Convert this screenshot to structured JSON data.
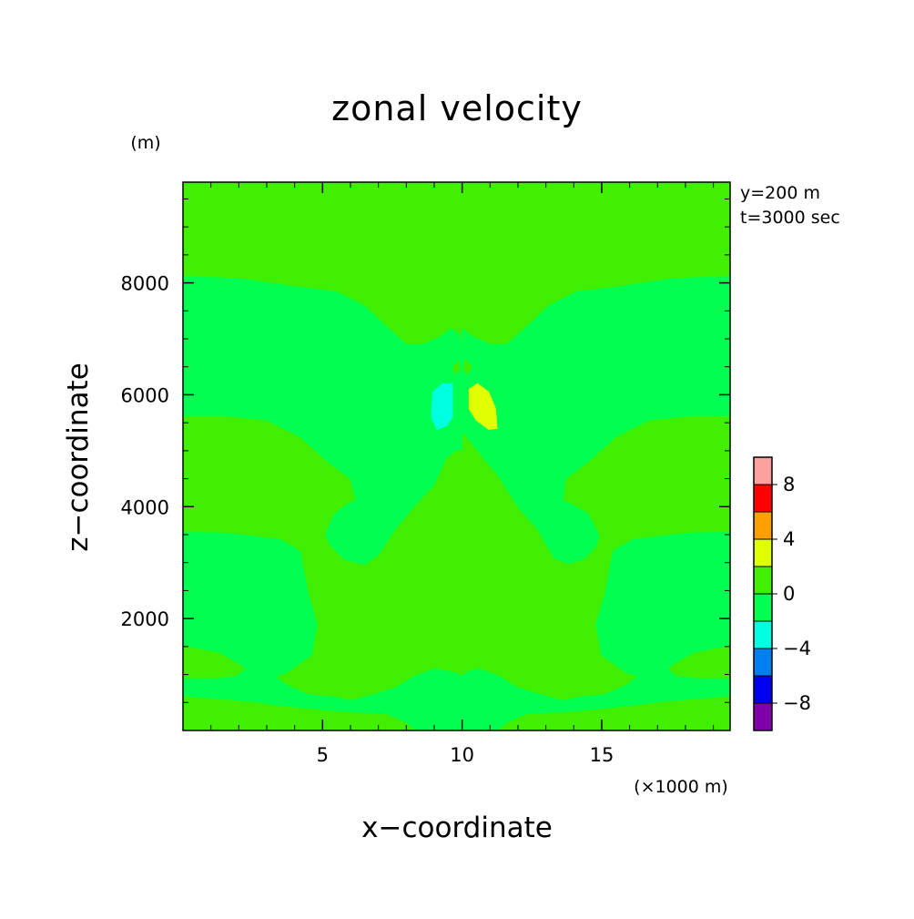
{
  "chart_data": {
    "type": "heatmap",
    "title": "zonal velocity",
    "xlabel": "x−coordinate",
    "ylabel": "z−coordinate",
    "x_unit": "(×1000 m)",
    "y_unit": "(m)",
    "info": [
      "y=200 m",
      "t=3000 sec"
    ],
    "xlim": [
      0,
      19.6
    ],
    "ylim": [
      0,
      9800
    ],
    "x_ticks": [
      {
        "value": 5,
        "label": "5"
      },
      {
        "value": 10,
        "label": "10"
      },
      {
        "value": 15,
        "label": "15"
      }
    ],
    "y_ticks": [
      {
        "value": 2000,
        "label": "2000"
      },
      {
        "value": 4000,
        "label": "4000"
      },
      {
        "value": 6000,
        "label": "6000"
      },
      {
        "value": 8000,
        "label": "8000"
      }
    ],
    "x_minor_step": 1,
    "y_minor_step": 500,
    "colorbar": {
      "levels": [
        -10,
        -8,
        -6,
        -4,
        -2,
        0,
        2,
        4,
        6,
        8,
        10
      ],
      "colors": [
        "#7f00a8",
        "#0000f0",
        "#0080f0",
        "#00ffe0",
        "#00ff50",
        "#40f000",
        "#e0ff00",
        "#ffa000",
        "#ff0000",
        "#ffa0a0"
      ],
      "labels": [
        {
          "value": -8,
          "label": "−8"
        },
        {
          "value": -4,
          "label": "−4"
        },
        {
          "value": 0,
          "label": "0"
        },
        {
          "value": 4,
          "label": "4"
        },
        {
          "value": 8,
          "label": "8"
        }
      ]
    },
    "background_color": "#40f000",
    "regions": [
      {
        "name": "negative-band-upper-left",
        "color": "#00ff50",
        "points": [
          [
            0,
            5.63
          ],
          [
            0,
            8.11
          ],
          [
            2,
            8.08
          ],
          [
            4,
            7.93
          ],
          [
            5.5,
            7.84
          ],
          [
            6.5,
            7.59
          ],
          [
            7.3,
            7.21
          ],
          [
            8,
            6.9
          ],
          [
            8.6,
            6.9
          ],
          [
            9.2,
            7.03
          ],
          [
            9.6,
            7.18
          ],
          [
            9.9,
            7.08
          ],
          [
            10,
            6.85
          ],
          [
            10,
            5.02
          ],
          [
            9.8,
            5.02
          ],
          [
            9.4,
            4.85
          ],
          [
            9,
            4.4
          ],
          [
            8.3,
            4.02
          ],
          [
            7.6,
            3.6
          ],
          [
            7,
            3.14
          ],
          [
            6.5,
            2.97
          ],
          [
            5.8,
            3.05
          ],
          [
            5.3,
            3.3
          ],
          [
            5.1,
            3.49
          ],
          [
            5.4,
            3.85
          ],
          [
            5.8,
            4.02
          ],
          [
            6.2,
            4.12
          ],
          [
            6,
            4.5
          ],
          [
            5.2,
            4.8
          ],
          [
            4.2,
            5.25
          ],
          [
            3,
            5.55
          ],
          [
            1.5,
            5.63
          ]
        ]
      },
      {
        "name": "negative-band-upper-right",
        "color": "#00ff50",
        "points": [
          [
            19.6,
            5.63
          ],
          [
            19.6,
            8.11
          ],
          [
            17.6,
            8.08
          ],
          [
            15.6,
            7.93
          ],
          [
            14.1,
            7.84
          ],
          [
            13.1,
            7.59
          ],
          [
            12.3,
            7.21
          ],
          [
            11.6,
            6.9
          ],
          [
            11,
            6.9
          ],
          [
            10.4,
            7.03
          ],
          [
            10,
            7.18
          ],
          [
            10,
            5.35
          ],
          [
            10.4,
            5.1
          ],
          [
            10.8,
            4.85
          ],
          [
            11.3,
            4.55
          ],
          [
            12,
            4.0
          ],
          [
            12.7,
            3.6
          ],
          [
            13.3,
            3.08
          ],
          [
            13.8,
            2.98
          ],
          [
            14.4,
            3.08
          ],
          [
            14.8,
            3.3
          ],
          [
            14.9,
            3.49
          ],
          [
            14.5,
            3.88
          ],
          [
            14,
            4.02
          ],
          [
            13.6,
            4.12
          ],
          [
            13.7,
            4.5
          ],
          [
            14.5,
            4.8
          ],
          [
            15.5,
            5.25
          ],
          [
            16.7,
            5.55
          ],
          [
            18.2,
            5.63
          ]
        ]
      },
      {
        "name": "negative-band-lower-left",
        "color": "#00ff50",
        "points": [
          [
            0,
            0.62
          ],
          [
            0,
            3.54
          ],
          [
            1.5,
            3.53
          ],
          [
            3.5,
            3.41
          ],
          [
            4.2,
            3.2
          ],
          [
            4.3,
            2.9
          ],
          [
            4.5,
            2.4
          ],
          [
            4.8,
            1.9
          ],
          [
            4.6,
            1.35
          ],
          [
            3.7,
            1.03
          ],
          [
            3.3,
            0.97
          ],
          [
            3.7,
            0.81
          ],
          [
            4.5,
            0.64
          ],
          [
            5.5,
            0.59
          ],
          [
            6,
            0.53
          ],
          [
            6.8,
            0.64
          ],
          [
            7.6,
            0.76
          ],
          [
            8.3,
            0.97
          ],
          [
            9,
            1.1
          ],
          [
            9.6,
            1.05
          ],
          [
            10,
            0.98
          ],
          [
            10,
            0.02
          ],
          [
            8.3,
            0.02
          ],
          [
            8.0,
            0.15
          ],
          [
            7.3,
            0.3
          ],
          [
            5.5,
            0.35
          ],
          [
            3.5,
            0.45
          ],
          [
            2.5,
            0.52
          ],
          [
            1.5,
            0.56
          ]
        ]
      },
      {
        "name": "negative-band-lower-right",
        "color": "#00ff50",
        "points": [
          [
            19.6,
            0.62
          ],
          [
            19.6,
            3.54
          ],
          [
            18.1,
            3.53
          ],
          [
            16.1,
            3.41
          ],
          [
            15.4,
            3.2
          ],
          [
            15.3,
            2.9
          ],
          [
            15.1,
            2.4
          ],
          [
            14.8,
            1.9
          ],
          [
            15.0,
            1.35
          ],
          [
            15.9,
            1.03
          ],
          [
            16.3,
            0.97
          ],
          [
            15.9,
            0.81
          ],
          [
            15.1,
            0.64
          ],
          [
            14.1,
            0.59
          ],
          [
            13.6,
            0.53
          ],
          [
            12.8,
            0.64
          ],
          [
            12.0,
            0.76
          ],
          [
            11.3,
            0.97
          ],
          [
            10.6,
            1.1
          ],
          [
            10.2,
            1.05
          ],
          [
            10,
            0.98
          ],
          [
            10,
            0.02
          ],
          [
            11.3,
            0.02
          ],
          [
            11.6,
            0.15
          ],
          [
            12.3,
            0.3
          ],
          [
            14.1,
            0.35
          ],
          [
            16.1,
            0.45
          ],
          [
            17.1,
            0.52
          ],
          [
            18.1,
            0.56
          ]
        ]
      },
      {
        "name": "positive-lens-left",
        "color": "#40f000",
        "points": [
          [
            0,
            1.51
          ],
          [
            0.6,
            1.45
          ],
          [
            1.3,
            1.38
          ],
          [
            2,
            1.18
          ],
          [
            2.2,
            1.1
          ],
          [
            1.9,
            0.98
          ],
          [
            1.2,
            0.94
          ],
          [
            0,
            0.94
          ]
        ]
      },
      {
        "name": "positive-lens-right",
        "color": "#40f000",
        "points": [
          [
            19.6,
            1.51
          ],
          [
            19.0,
            1.45
          ],
          [
            18.3,
            1.38
          ],
          [
            17.6,
            1.18
          ],
          [
            17.4,
            1.1
          ],
          [
            17.7,
            0.98
          ],
          [
            18.4,
            0.94
          ],
          [
            19.6,
            0.94
          ]
        ]
      },
      {
        "name": "small-blob-left",
        "color": "#40f000",
        "points": [
          [
            9.7,
            6.52
          ],
          [
            9.9,
            6.6
          ],
          [
            9.9,
            6.44
          ],
          [
            9.7,
            6.38
          ]
        ]
      },
      {
        "name": "small-blob-right",
        "color": "#40f000",
        "points": [
          [
            10.1,
            6.62
          ],
          [
            10.35,
            6.5
          ],
          [
            10.2,
            6.38
          ],
          [
            10.05,
            6.42
          ]
        ]
      },
      {
        "name": "negative-core",
        "color": "#00ffe0",
        "points": [
          [
            8.95,
            6.05
          ],
          [
            9.3,
            6.2
          ],
          [
            9.65,
            6.2
          ],
          [
            9.65,
            5.6
          ],
          [
            9.45,
            5.45
          ],
          [
            9.1,
            5.38
          ],
          [
            8.9,
            5.6
          ]
        ]
      },
      {
        "name": "positive-core",
        "color": "#e0ff00",
        "points": [
          [
            10.25,
            6.1
          ],
          [
            10.55,
            6.2
          ],
          [
            10.95,
            6.05
          ],
          [
            11.2,
            5.75
          ],
          [
            11.25,
            5.4
          ],
          [
            10.95,
            5.38
          ],
          [
            10.5,
            5.55
          ],
          [
            10.25,
            5.75
          ]
        ]
      }
    ]
  }
}
